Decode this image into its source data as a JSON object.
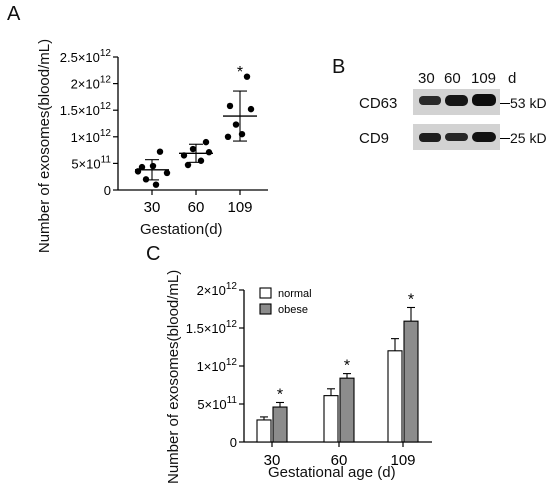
{
  "panels": {
    "a": {
      "letter": "A"
    },
    "b": {
      "letter": "B"
    },
    "c": {
      "letter": "C"
    }
  },
  "western_blot": {
    "day_unit": "d",
    "days": [
      "30",
      "60",
      "109"
    ],
    "rows": [
      {
        "protein": "CD63",
        "size": "53 kD"
      },
      {
        "protein": "CD9",
        "size": "25 kD"
      }
    ]
  },
  "colors": {
    "normal_bar": "#ffffff",
    "obese_bar": "#8c8c8c",
    "ink": "#000000"
  },
  "chart_data": [
    {
      "type": "scatter",
      "ylabel": "Number of exosomes(blood/mL)",
      "xlabel": "Gestation(d)",
      "categories": [
        "30",
        "60",
        "109"
      ],
      "y_tick_labels": [
        "0",
        "5×10",
        "1×10",
        "1.5×10",
        "2×10",
        "2.5×10"
      ],
      "y_tick_exponents": [
        "",
        "11",
        "12",
        "12",
        "12",
        "12"
      ],
      "y_ticks": [
        0,
        500000000000.0,
        1000000000000.0,
        1500000000000.0,
        2000000000000.0,
        2500000000000.0
      ],
      "ylim": [
        0,
        2500000000000.0
      ],
      "points": [
        [
          350000000000.0,
          200000000000.0,
          450000000000.0,
          720000000000.0,
          320000000000.0,
          430000000000.0,
          100000000000.0
        ],
        [
          650000000000.0,
          900000000000.0,
          770000000000.0,
          550000000000.0,
          710000000000.0,
          470000000000.0
        ],
        [
          1580000000000.0,
          1050000000000.0,
          1520000000000.0,
          1230000000000.0,
          2130000000000.0,
          1000000000000.0
        ]
      ],
      "mean": [
        380000000000.0,
        690000000000.0,
        1390000000000.0
      ],
      "sd": [
        190000000000.0,
        170000000000.0,
        470000000000.0
      ],
      "significance": [
        "",
        "",
        "*"
      ]
    },
    {
      "type": "bar",
      "ylabel": "Number of exosomes(blood/mL)",
      "xlabel": "Gestational age (d)",
      "categories": [
        "30",
        "60",
        "109"
      ],
      "y_tick_labels": [
        "0",
        "5×10",
        "1×10",
        "1.5×10",
        "2×10"
      ],
      "y_tick_exponents": [
        "",
        "11",
        "12",
        "12",
        "12"
      ],
      "y_ticks": [
        0,
        500000000000.0,
        1000000000000.0,
        1500000000000.0,
        2000000000000.0
      ],
      "ylim": [
        0,
        2000000000000.0
      ],
      "legend_position": "top-left",
      "series": [
        {
          "name": "normal",
          "values": [
            290000000000.0,
            610000000000.0,
            1200000000000.0
          ],
          "error": [
            40000000000.0,
            90000000000.0,
            160000000000.0
          ],
          "significance": [
            "",
            "",
            ""
          ]
        },
        {
          "name": "obese",
          "values": [
            460000000000.0,
            840000000000.0,
            1590000000000.0
          ],
          "error": [
            60000000000.0,
            60000000000.0,
            180000000000.0
          ],
          "significance": [
            "*",
            "*",
            "*"
          ]
        }
      ]
    }
  ]
}
